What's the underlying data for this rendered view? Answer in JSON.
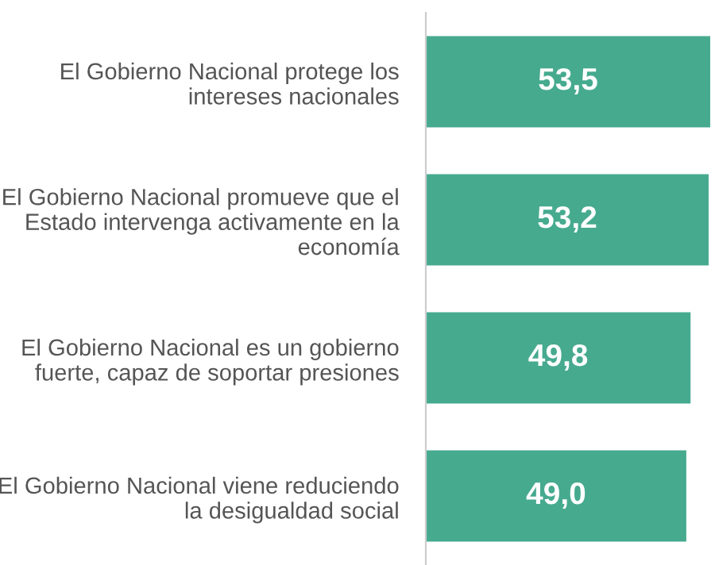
{
  "chart_data": {
    "type": "bar",
    "orientation": "horizontal",
    "categories": [
      "El Gobierno Nacional protege los\nintereses nacionales",
      "El Gobierno Nacional promueve que el\nEstado intervenga activamente en la\neconomía",
      "El Gobierno Nacional es un gobierno\nfuerte, capaz de soportar presiones",
      "El Gobierno Nacional viene reduciendo\nla desigualdad social"
    ],
    "values": [
      53.5,
      53.2,
      49.8,
      49.0
    ],
    "value_labels": [
      "53,5",
      "53,2",
      "49,8",
      "49,0"
    ],
    "color": "#46aa8f",
    "xlim": [
      0,
      54.4
    ],
    "tick_labels": "y",
    "grid": false,
    "legend": false
  }
}
